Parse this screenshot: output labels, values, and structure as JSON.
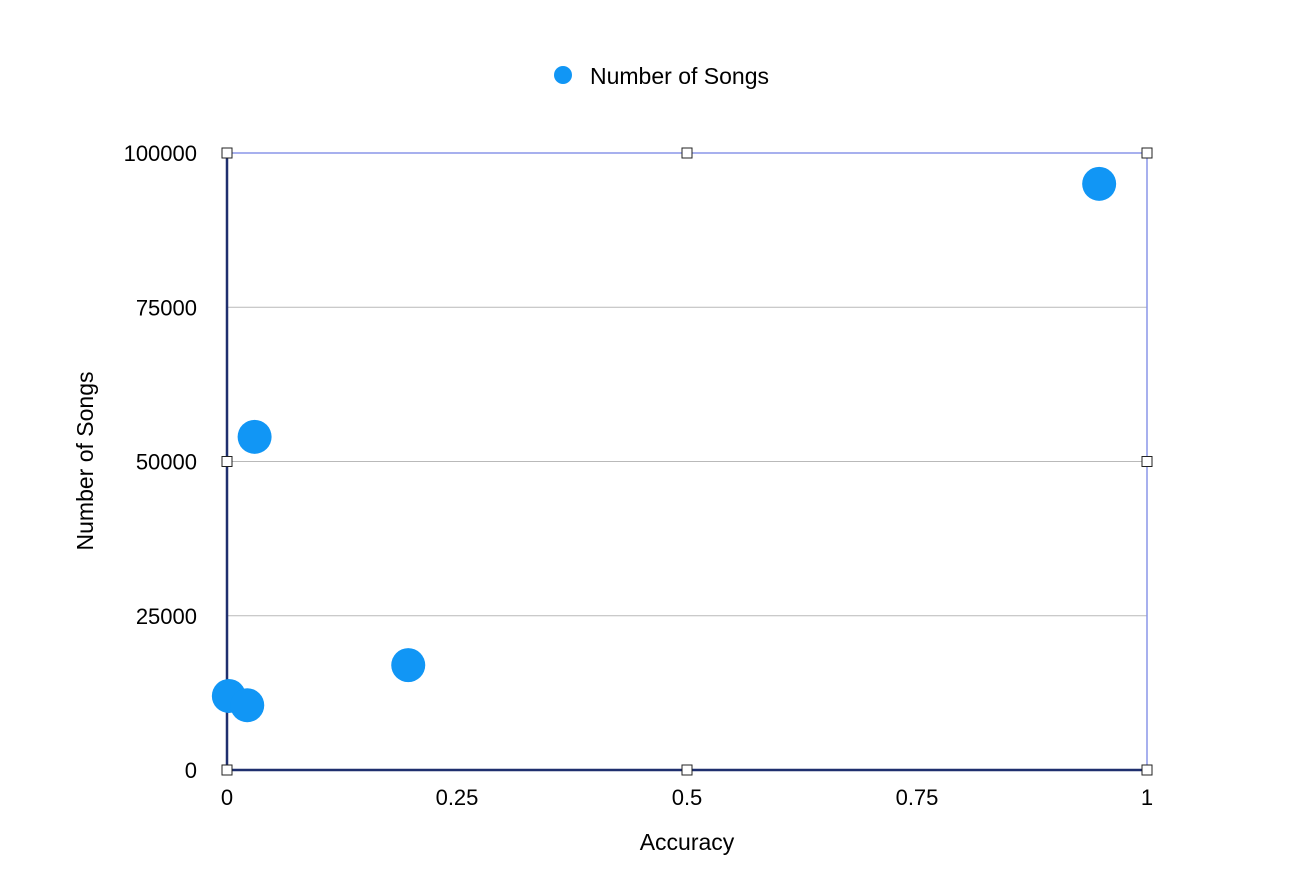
{
  "chart_data": {
    "type": "scatter",
    "title": "",
    "xlabel": "Accuracy",
    "ylabel": "Number of Songs",
    "xlim": [
      0,
      1
    ],
    "ylim": [
      0,
      100000
    ],
    "x_ticks": [
      "0",
      "0.25",
      "0.5",
      "0.75",
      "1"
    ],
    "y_ticks": [
      "0",
      "25000",
      "50000",
      "75000",
      "100000"
    ],
    "grid": true,
    "legend_position": "top-center",
    "series": [
      {
        "name": "Number of Songs",
        "color": "#1196f5",
        "points": [
          {
            "x": 0.002,
            "y": 12000
          },
          {
            "x": 0.022,
            "y": 10500
          },
          {
            "x": 0.03,
            "y": 54000
          },
          {
            "x": 0.197,
            "y": 17000
          },
          {
            "x": 0.948,
            "y": 95000
          }
        ]
      }
    ]
  }
}
